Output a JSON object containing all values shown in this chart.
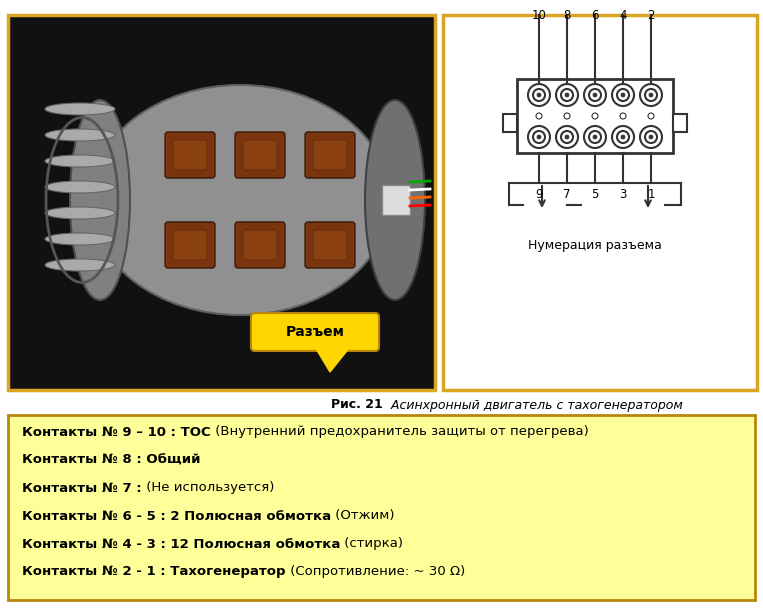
{
  "bg_color": "#ffffff",
  "left_frame_color": "#DAA520",
  "right_frame_color": "#DAA520",
  "info_box_bg": "#FFFF99",
  "info_box_border": "#B8860B",
  "caption_bold": "Рис. 21",
  "caption_italic": " Асинхронный двигатель с тахогенератором",
  "razem_label": "Разъем",
  "numeraciya_label": "Нумерация разъема",
  "connector_numbers_top": [
    "10",
    "8",
    "6",
    "4",
    "2"
  ],
  "connector_numbers_bottom": [
    "9",
    "7",
    "5",
    "3",
    "1"
  ],
  "info_lines": [
    {
      "bold": "Контакты № 9 – 10 : ТОС",
      "normal": " (Внутренний предохранитель защиты от перегрева)"
    },
    {
      "bold": "Контакты № 8 : Общий",
      "normal": ""
    },
    {
      "bold": "Контакты № 7 :",
      "normal": " (Не используется)"
    },
    {
      "bold": "Контакты № 6 - 5 : 2 Полюсная обмотка",
      "normal": " (Отжим)"
    },
    {
      "bold": "Контакты № 4 - 3 : 12 Полюсная обмотка",
      "normal": " (стирка)"
    },
    {
      "bold": "Контакты № 2 - 1 : Тахогенератор",
      "normal": " (Сопротивление: ~ 30 Ω)"
    }
  ],
  "frame_linewidth": 2.5,
  "motor_bg": "#111111",
  "connector_diagram_color": "#333333"
}
